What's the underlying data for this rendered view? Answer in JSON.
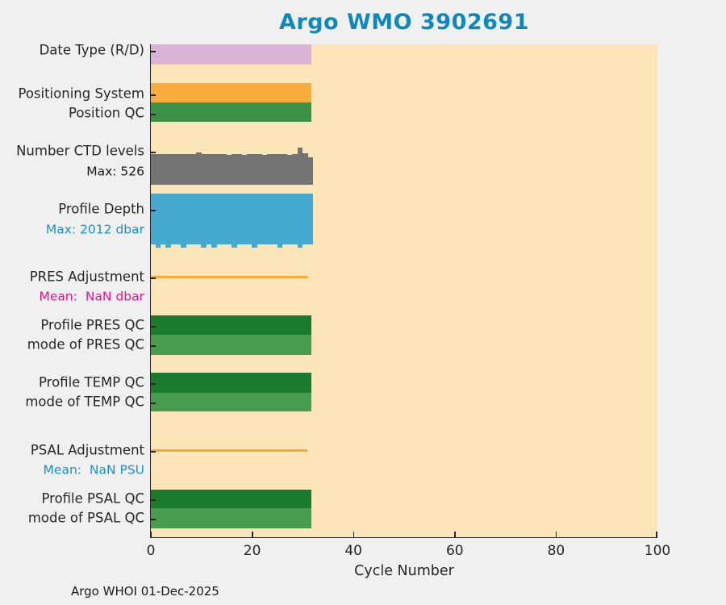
{
  "title": "Argo WMO 3902691",
  "footer": "Argo WHOI 01-Dec-2025",
  "colors": {
    "figure_bg": "#f0f0f0",
    "plot_bg": "#fde5ba",
    "axis": "#262626",
    "title_text": "#1287b9",
    "label_text": "#262626",
    "blue_text": "#1d8fc6",
    "magenta_text": "#ee0d8c"
  },
  "chart_data": {
    "type": "bar",
    "description": "Horizontal status-row summary chart of Argo float cycles; all rows span cycles 0 to ~31 of the 0-100 axis",
    "x_axis": {
      "label": "Cycle Number",
      "range": [
        0,
        100
      ],
      "ticks": [
        0,
        20,
        40,
        60,
        80,
        100
      ]
    },
    "n_cycles": 32,
    "rows": [
      {
        "id": "date_type",
        "label": "Date Type (R/D)",
        "type": "flat_bar",
        "color": "#d9b4d8",
        "extent_cycles": 31.7
      },
      {
        "id": "positioning_system",
        "label": "Positioning System",
        "type": "flat_bar",
        "color": "#faac3d",
        "extent_cycles": 31.7
      },
      {
        "id": "position_qc",
        "label": "Position QC",
        "type": "flat_bar",
        "color": "#3e9248",
        "extent_cycles": 31.7
      },
      {
        "id": "ctd_levels",
        "label": "Number CTD levels",
        "sublabel": "Max: 526",
        "sublabel_color": "#1a1a1a",
        "type": "var_bar_top",
        "color": "#737373",
        "extent_cycles": 32,
        "max": 526,
        "values": [
          433,
          436,
          430,
          433,
          438,
          433,
          430,
          433,
          436,
          456,
          433,
          430,
          433,
          436,
          430,
          426,
          433,
          430,
          426,
          436,
          433,
          430,
          426,
          433,
          430,
          436,
          433,
          426,
          430,
          526,
          444,
          386
        ]
      },
      {
        "id": "profile_depth",
        "label": "Profile Depth",
        "sublabel": "Max: 2012 dbar",
        "sublabel_color": "#1d8fc6",
        "type": "var_bar_bottom",
        "color": "#45a8ce",
        "extent_cycles": 32,
        "max": 2012,
        "values": [
          1880,
          2012,
          1890,
          2012,
          1885,
          1895,
          2012,
          1890,
          1880,
          1895,
          2012,
          1885,
          2012,
          1890,
          1895,
          1885,
          2012,
          1890,
          1880,
          1895,
          2012,
          1885,
          1890,
          1895,
          1885,
          2012,
          1890,
          1880,
          1895,
          2012,
          1885,
          1890
        ]
      },
      {
        "id": "pres_adjustment",
        "label": "PRES Adjustment",
        "sublabel": "Mean:  NaN dbar",
        "sublabel_color": "#ee0d8c",
        "type": "line",
        "color": "#f6a83b",
        "extent_cycles": 31
      },
      {
        "id": "profile_pres_qc",
        "label": "Profile PRES QC",
        "type": "flat_bar",
        "color": "#1a7a2e",
        "extent_cycles": 31.7
      },
      {
        "id": "mode_pres_qc",
        "label": "mode of PRES QC",
        "type": "flat_bar",
        "color": "#489c50",
        "extent_cycles": 31.7
      },
      {
        "id": "profile_temp_qc",
        "label": "Profile TEMP QC",
        "type": "flat_bar",
        "color": "#1a7a2e",
        "extent_cycles": 31.7
      },
      {
        "id": "mode_temp_qc",
        "label": "mode of TEMP QC",
        "type": "flat_bar",
        "color": "#489c50",
        "extent_cycles": 31.7
      },
      {
        "id": "psal_adjustment",
        "label": "PSAL Adjustment",
        "sublabel": "Mean:  NaN PSU",
        "sublabel_color": "#1d8fc6",
        "type": "line",
        "color": "#f6a83b",
        "extent_cycles": 31
      },
      {
        "id": "profile_psal_qc",
        "label": "Profile PSAL QC",
        "type": "flat_bar",
        "color": "#1a7a2e",
        "extent_cycles": 31.7
      },
      {
        "id": "mode_psal_qc",
        "label": "mode of PSAL QC",
        "type": "flat_bar",
        "color": "#489c50",
        "extent_cycles": 31.7
      }
    ]
  }
}
